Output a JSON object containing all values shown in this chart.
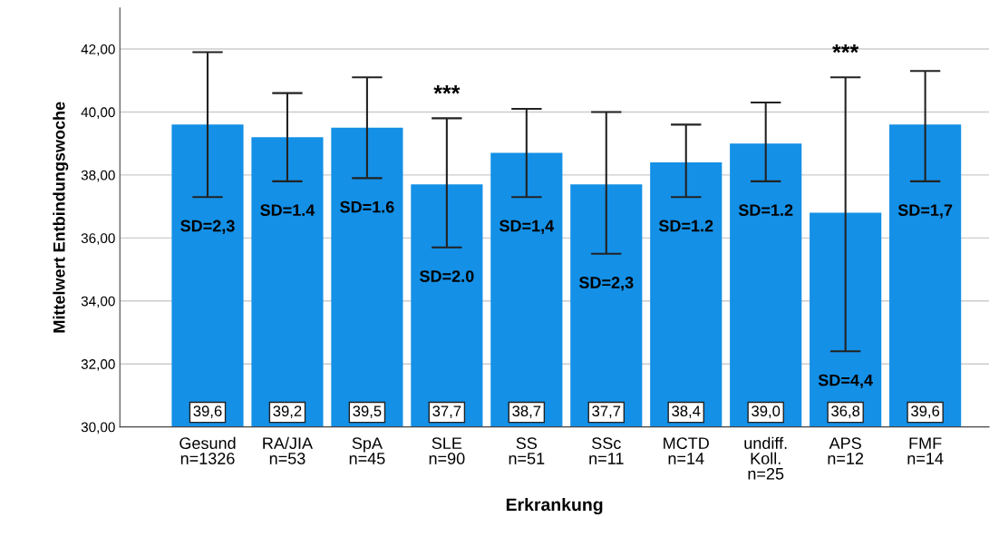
{
  "chart_data": {
    "type": "bar",
    "xlabel": "Erkrankung",
    "ylabel": "Mittelwert Entbindungswoche",
    "categories": [
      "Gesund\nn=1326",
      "RA/JIA\nn=53",
      "SpA\nn=45",
      "SLE\nn=90",
      "SS\nn=51",
      "SSc\nn=11",
      "MCTD\nn=14",
      "undiff.\nKoll.\nn=25",
      "APS\nn=12",
      "FMF\nn=14"
    ],
    "values": [
      39.6,
      39.2,
      39.5,
      37.7,
      38.7,
      37.7,
      38.4,
      39.0,
      36.8,
      39.6
    ],
    "value_labels": [
      "39,6",
      "39,2",
      "39,5",
      "37,7",
      "38,7",
      "37,7",
      "38,4",
      "39,0",
      "36,8",
      "39,6"
    ],
    "errors": [
      [
        37.3,
        41.9
      ],
      [
        37.8,
        40.6
      ],
      [
        37.9,
        41.1
      ],
      [
        35.7,
        39.8
      ],
      [
        37.3,
        40.1
      ],
      [
        35.5,
        40.0
      ],
      [
        37.3,
        39.6
      ],
      [
        37.8,
        40.3
      ],
      [
        32.4,
        41.1
      ],
      [
        37.8,
        41.3
      ]
    ],
    "color": "#1490e6",
    "ylim": [
      30,
      43.3
    ],
    "yticks": [
      {
        "value": 30,
        "label": "30,00"
      },
      {
        "value": 32,
        "label": "32,00"
      },
      {
        "value": 34,
        "label": "34,00"
      },
      {
        "value": 36,
        "label": "36,00"
      },
      {
        "value": 38,
        "label": "38,00"
      },
      {
        "value": 40,
        "label": "40,00"
      },
      {
        "value": 42,
        "label": "42,00"
      }
    ],
    "grid": "y",
    "annotations": [
      {
        "text": "SD=2,3",
        "x": "Gesund\nn=1326",
        "y": 37.3
      },
      {
        "text": "SD=1.4",
        "x": "RA/JIA\nn=53",
        "y": 37.8
      },
      {
        "text": "SD=1.6",
        "x": "SpA\nn=45",
        "y": 37.9
      },
      {
        "text": "SD=2.0",
        "x": "SLE\nn=90",
        "y": 35.7
      },
      {
        "text": "***",
        "x": "SLE\nn=90",
        "y": 39.8
      },
      {
        "text": "SD=1,4",
        "x": "SS\nn=51",
        "y": 37.3
      },
      {
        "text": "SD=2,3",
        "x": "SSc\nn=11",
        "y": 35.5
      },
      {
        "text": "SD=1.2",
        "x": "MCTD\nn=14",
        "y": 37.3
      },
      {
        "text": "SD=1.2",
        "x": "undiff.\nKoll.\nn=25",
        "y": 37.8
      },
      {
        "text": "SD=4,4",
        "x": "APS\nn=12",
        "y": 32.4
      },
      {
        "text": "***",
        "x": "APS\nn=12",
        "y": 41.1
      },
      {
        "text": "SD=1,7",
        "x": "FMF\nn=14",
        "y": 37.8
      }
    ]
  }
}
